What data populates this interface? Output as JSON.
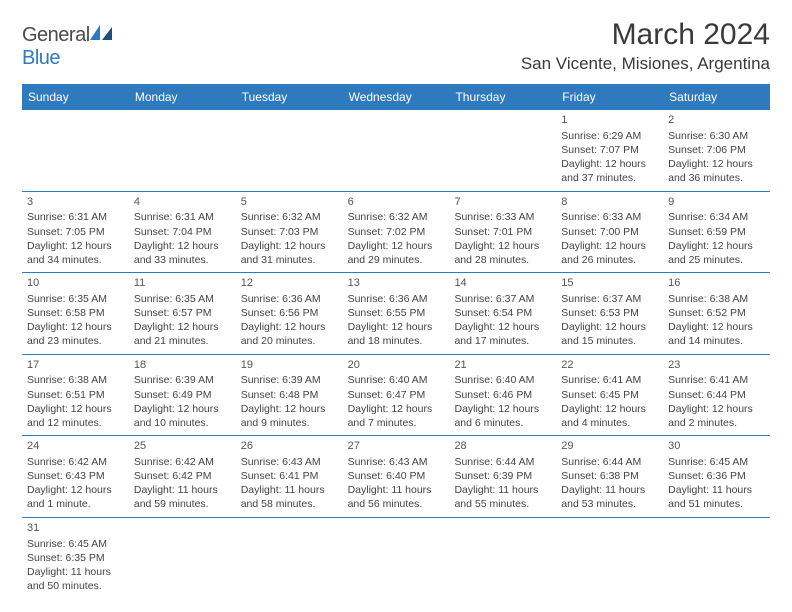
{
  "brand": {
    "part1": "General",
    "part2": "Blue"
  },
  "title": "March 2024",
  "location": "San Vicente, Misiones, Argentina",
  "colors": {
    "header_bg": "#2f7abf",
    "border": "#2f7abf",
    "text": "#444444",
    "title": "#3a3a3a"
  },
  "weekdays": [
    "Sunday",
    "Monday",
    "Tuesday",
    "Wednesday",
    "Thursday",
    "Friday",
    "Saturday"
  ],
  "weeks": [
    [
      null,
      null,
      null,
      null,
      null,
      {
        "n": "1",
        "sr": "Sunrise: 6:29 AM",
        "ss": "Sunset: 7:07 PM",
        "d1": "Daylight: 12 hours",
        "d2": "and 37 minutes."
      },
      {
        "n": "2",
        "sr": "Sunrise: 6:30 AM",
        "ss": "Sunset: 7:06 PM",
        "d1": "Daylight: 12 hours",
        "d2": "and 36 minutes."
      }
    ],
    [
      {
        "n": "3",
        "sr": "Sunrise: 6:31 AM",
        "ss": "Sunset: 7:05 PM",
        "d1": "Daylight: 12 hours",
        "d2": "and 34 minutes."
      },
      {
        "n": "4",
        "sr": "Sunrise: 6:31 AM",
        "ss": "Sunset: 7:04 PM",
        "d1": "Daylight: 12 hours",
        "d2": "and 33 minutes."
      },
      {
        "n": "5",
        "sr": "Sunrise: 6:32 AM",
        "ss": "Sunset: 7:03 PM",
        "d1": "Daylight: 12 hours",
        "d2": "and 31 minutes."
      },
      {
        "n": "6",
        "sr": "Sunrise: 6:32 AM",
        "ss": "Sunset: 7:02 PM",
        "d1": "Daylight: 12 hours",
        "d2": "and 29 minutes."
      },
      {
        "n": "7",
        "sr": "Sunrise: 6:33 AM",
        "ss": "Sunset: 7:01 PM",
        "d1": "Daylight: 12 hours",
        "d2": "and 28 minutes."
      },
      {
        "n": "8",
        "sr": "Sunrise: 6:33 AM",
        "ss": "Sunset: 7:00 PM",
        "d1": "Daylight: 12 hours",
        "d2": "and 26 minutes."
      },
      {
        "n": "9",
        "sr": "Sunrise: 6:34 AM",
        "ss": "Sunset: 6:59 PM",
        "d1": "Daylight: 12 hours",
        "d2": "and 25 minutes."
      }
    ],
    [
      {
        "n": "10",
        "sr": "Sunrise: 6:35 AM",
        "ss": "Sunset: 6:58 PM",
        "d1": "Daylight: 12 hours",
        "d2": "and 23 minutes."
      },
      {
        "n": "11",
        "sr": "Sunrise: 6:35 AM",
        "ss": "Sunset: 6:57 PM",
        "d1": "Daylight: 12 hours",
        "d2": "and 21 minutes."
      },
      {
        "n": "12",
        "sr": "Sunrise: 6:36 AM",
        "ss": "Sunset: 6:56 PM",
        "d1": "Daylight: 12 hours",
        "d2": "and 20 minutes."
      },
      {
        "n": "13",
        "sr": "Sunrise: 6:36 AM",
        "ss": "Sunset: 6:55 PM",
        "d1": "Daylight: 12 hours",
        "d2": "and 18 minutes."
      },
      {
        "n": "14",
        "sr": "Sunrise: 6:37 AM",
        "ss": "Sunset: 6:54 PM",
        "d1": "Daylight: 12 hours",
        "d2": "and 17 minutes."
      },
      {
        "n": "15",
        "sr": "Sunrise: 6:37 AM",
        "ss": "Sunset: 6:53 PM",
        "d1": "Daylight: 12 hours",
        "d2": "and 15 minutes."
      },
      {
        "n": "16",
        "sr": "Sunrise: 6:38 AM",
        "ss": "Sunset: 6:52 PM",
        "d1": "Daylight: 12 hours",
        "d2": "and 14 minutes."
      }
    ],
    [
      {
        "n": "17",
        "sr": "Sunrise: 6:38 AM",
        "ss": "Sunset: 6:51 PM",
        "d1": "Daylight: 12 hours",
        "d2": "and 12 minutes."
      },
      {
        "n": "18",
        "sr": "Sunrise: 6:39 AM",
        "ss": "Sunset: 6:49 PM",
        "d1": "Daylight: 12 hours",
        "d2": "and 10 minutes."
      },
      {
        "n": "19",
        "sr": "Sunrise: 6:39 AM",
        "ss": "Sunset: 6:48 PM",
        "d1": "Daylight: 12 hours",
        "d2": "and 9 minutes."
      },
      {
        "n": "20",
        "sr": "Sunrise: 6:40 AM",
        "ss": "Sunset: 6:47 PM",
        "d1": "Daylight: 12 hours",
        "d2": "and 7 minutes."
      },
      {
        "n": "21",
        "sr": "Sunrise: 6:40 AM",
        "ss": "Sunset: 6:46 PM",
        "d1": "Daylight: 12 hours",
        "d2": "and 6 minutes."
      },
      {
        "n": "22",
        "sr": "Sunrise: 6:41 AM",
        "ss": "Sunset: 6:45 PM",
        "d1": "Daylight: 12 hours",
        "d2": "and 4 minutes."
      },
      {
        "n": "23",
        "sr": "Sunrise: 6:41 AM",
        "ss": "Sunset: 6:44 PM",
        "d1": "Daylight: 12 hours",
        "d2": "and 2 minutes."
      }
    ],
    [
      {
        "n": "24",
        "sr": "Sunrise: 6:42 AM",
        "ss": "Sunset: 6:43 PM",
        "d1": "Daylight: 12 hours",
        "d2": "and 1 minute."
      },
      {
        "n": "25",
        "sr": "Sunrise: 6:42 AM",
        "ss": "Sunset: 6:42 PM",
        "d1": "Daylight: 11 hours",
        "d2": "and 59 minutes."
      },
      {
        "n": "26",
        "sr": "Sunrise: 6:43 AM",
        "ss": "Sunset: 6:41 PM",
        "d1": "Daylight: 11 hours",
        "d2": "and 58 minutes."
      },
      {
        "n": "27",
        "sr": "Sunrise: 6:43 AM",
        "ss": "Sunset: 6:40 PM",
        "d1": "Daylight: 11 hours",
        "d2": "and 56 minutes."
      },
      {
        "n": "28",
        "sr": "Sunrise: 6:44 AM",
        "ss": "Sunset: 6:39 PM",
        "d1": "Daylight: 11 hours",
        "d2": "and 55 minutes."
      },
      {
        "n": "29",
        "sr": "Sunrise: 6:44 AM",
        "ss": "Sunset: 6:38 PM",
        "d1": "Daylight: 11 hours",
        "d2": "and 53 minutes."
      },
      {
        "n": "30",
        "sr": "Sunrise: 6:45 AM",
        "ss": "Sunset: 6:36 PM",
        "d1": "Daylight: 11 hours",
        "d2": "and 51 minutes."
      }
    ],
    [
      {
        "n": "31",
        "sr": "Sunrise: 6:45 AM",
        "ss": "Sunset: 6:35 PM",
        "d1": "Daylight: 11 hours",
        "d2": "and 50 minutes."
      },
      null,
      null,
      null,
      null,
      null,
      null
    ]
  ]
}
